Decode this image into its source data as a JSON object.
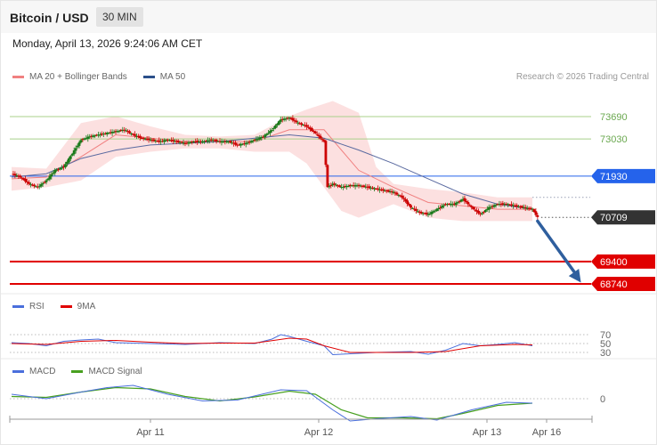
{
  "header": {
    "title": "Bitcoin / USD",
    "timeframe": "30 MIN"
  },
  "timestamp": "Monday, April 13, 2026 9:24:06 AM CET",
  "legend_main": [
    {
      "label": "MA 20 + Bollinger Bands",
      "color": "#f08080"
    },
    {
      "label": "MA 50",
      "color": "#2b4f8a"
    }
  ],
  "copyright": "Research © 2026 Trading Central",
  "colors": {
    "resistance": "#a8d08a",
    "pivot": "#2563eb",
    "support": "#e00000",
    "current": "#333333",
    "arrow": "#2f5f9e",
    "up": "#1a7a1a",
    "down": "#cc0000"
  },
  "chart_data": [
    {
      "type": "line",
      "name": "price",
      "ylim": [
        68300,
        74300
      ],
      "levels": [
        {
          "value": 73690,
          "label": "73690",
          "kind": "resistance"
        },
        {
          "value": 73030,
          "label": "73030",
          "kind": "resistance"
        },
        {
          "value": 71930,
          "label": "71930",
          "kind": "pivot"
        },
        {
          "value": 70709,
          "label": "70709",
          "kind": "current"
        },
        {
          "value": 69400,
          "label": "69400",
          "kind": "support"
        },
        {
          "value": 68740,
          "label": "68740",
          "kind": "support"
        }
      ],
      "x_ticks": [
        "Apr 11",
        "Apr 12",
        "Apr 13",
        "Apr 16"
      ],
      "close_path": [
        [
          0,
          72000
        ],
        [
          5,
          71900
        ],
        [
          10,
          71700
        ],
        [
          15,
          71600
        ],
        [
          20,
          71800
        ],
        [
          25,
          72100
        ],
        [
          30,
          72200
        ],
        [
          35,
          72600
        ],
        [
          40,
          73000
        ],
        [
          45,
          73100
        ],
        [
          50,
          73150
        ],
        [
          55,
          73200
        ],
        [
          60,
          73250
        ],
        [
          65,
          73300
        ],
        [
          70,
          73150
        ],
        [
          75,
          73050
        ],
        [
          80,
          73000
        ],
        [
          85,
          72950
        ],
        [
          90,
          73000
        ],
        [
          95,
          72950
        ],
        [
          100,
          72900
        ],
        [
          105,
          72950
        ],
        [
          110,
          72950
        ],
        [
          115,
          73000
        ],
        [
          120,
          72950
        ],
        [
          125,
          72950
        ],
        [
          130,
          72850
        ],
        [
          135,
          72900
        ],
        [
          140,
          73000
        ],
        [
          145,
          73100
        ],
        [
          150,
          73300
        ],
        [
          155,
          73600
        ],
        [
          160,
          73650
        ],
        [
          165,
          73500
        ],
        [
          170,
          73400
        ],
        [
          175,
          73200
        ],
        [
          180,
          72950
        ],
        [
          182,
          71600
        ],
        [
          185,
          71700
        ],
        [
          190,
          71600
        ],
        [
          195,
          71650
        ],
        [
          200,
          71650
        ],
        [
          205,
          71600
        ],
        [
          210,
          71550
        ],
        [
          215,
          71500
        ],
        [
          220,
          71450
        ],
        [
          225,
          71300
        ],
        [
          230,
          71000
        ],
        [
          235,
          70850
        ],
        [
          240,
          70800
        ],
        [
          245,
          70950
        ],
        [
          250,
          71100
        ],
        [
          255,
          71100
        ],
        [
          260,
          71250
        ],
        [
          265,
          71000
        ],
        [
          270,
          70800
        ],
        [
          275,
          71000
        ],
        [
          280,
          71100
        ],
        [
          285,
          71100
        ],
        [
          290,
          71050
        ],
        [
          295,
          71000
        ],
        [
          300,
          70950
        ],
        [
          303,
          70709
        ]
      ],
      "ma20": [
        [
          0,
          71850
        ],
        [
          20,
          71900
        ],
        [
          40,
          72500
        ],
        [
          60,
          73150
        ],
        [
          80,
          73050
        ],
        [
          100,
          72950
        ],
        [
          120,
          72950
        ],
        [
          140,
          72950
        ],
        [
          160,
          73300
        ],
        [
          180,
          73300
        ],
        [
          200,
          72100
        ],
        [
          220,
          71600
        ],
        [
          240,
          71150
        ],
        [
          260,
          71050
        ],
        [
          280,
          70950
        ],
        [
          300,
          70950
        ]
      ],
      "ma50": [
        [
          0,
          71900
        ],
        [
          20,
          72000
        ],
        [
          40,
          72450
        ],
        [
          60,
          72700
        ],
        [
          80,
          72850
        ],
        [
          100,
          72900
        ],
        [
          120,
          72950
        ],
        [
          140,
          73050
        ],
        [
          160,
          73150
        ],
        [
          180,
          73050
        ],
        [
          200,
          72700
        ],
        [
          220,
          72300
        ],
        [
          240,
          71850
        ],
        [
          260,
          71400
        ],
        [
          280,
          71100
        ],
        [
          300,
          70950
        ]
      ],
      "bb_upper": [
        [
          0,
          72200
        ],
        [
          20,
          72150
        ],
        [
          40,
          73500
        ],
        [
          60,
          73700
        ],
        [
          80,
          73400
        ],
        [
          100,
          73150
        ],
        [
          120,
          73100
        ],
        [
          140,
          73150
        ],
        [
          160,
          73700
        ],
        [
          170,
          73900
        ],
        [
          185,
          74150
        ],
        [
          200,
          73800
        ],
        [
          210,
          72200
        ],
        [
          220,
          71700
        ],
        [
          240,
          71550
        ],
        [
          260,
          71450
        ],
        [
          280,
          71300
        ],
        [
          300,
          71300
        ]
      ],
      "bb_lower": [
        [
          0,
          71500
        ],
        [
          20,
          71600
        ],
        [
          40,
          71800
        ],
        [
          60,
          72500
        ],
        [
          80,
          72650
        ],
        [
          100,
          72750
        ],
        [
          120,
          72750
        ],
        [
          140,
          72650
        ],
        [
          160,
          72650
        ],
        [
          170,
          72300
        ],
        [
          190,
          70900
        ],
        [
          200,
          70700
        ],
        [
          210,
          70900
        ],
        [
          220,
          71100
        ],
        [
          240,
          70700
        ],
        [
          260,
          70600
        ],
        [
          280,
          70600
        ],
        [
          300,
          70600
        ]
      ],
      "trend_arrow": {
        "from": [
          303,
          70600
        ],
        "to": [
          328,
          68780
        ]
      }
    },
    {
      "type": "line",
      "title": "RSI",
      "legend": [
        {
          "label": "RSI",
          "color": "#4a6fdc"
        },
        {
          "label": "9MA",
          "color": "#e00000"
        }
      ],
      "ylim": [
        15,
        85
      ],
      "y_ticks": [
        "70",
        "50",
        "30"
      ],
      "rsi": [
        [
          0,
          52
        ],
        [
          10,
          50
        ],
        [
          20,
          45
        ],
        [
          30,
          55
        ],
        [
          40,
          58
        ],
        [
          50,
          60
        ],
        [
          60,
          52
        ],
        [
          80,
          50
        ],
        [
          100,
          48
        ],
        [
          120,
          52
        ],
        [
          140,
          50
        ],
        [
          150,
          60
        ],
        [
          155,
          70
        ],
        [
          160,
          66
        ],
        [
          170,
          55
        ],
        [
          180,
          45
        ],
        [
          185,
          25
        ],
        [
          195,
          27
        ],
        [
          210,
          30
        ],
        [
          230,
          32
        ],
        [
          240,
          26
        ],
        [
          250,
          35
        ],
        [
          260,
          50
        ],
        [
          270,
          45
        ],
        [
          280,
          48
        ],
        [
          290,
          52
        ],
        [
          300,
          45
        ]
      ],
      "ma9": [
        [
          0,
          50
        ],
        [
          20,
          48
        ],
        [
          40,
          55
        ],
        [
          60,
          57
        ],
        [
          80,
          53
        ],
        [
          100,
          50
        ],
        [
          120,
          51
        ],
        [
          140,
          51
        ],
        [
          160,
          62
        ],
        [
          170,
          60
        ],
        [
          180,
          45
        ],
        [
          195,
          30
        ],
        [
          210,
          30
        ],
        [
          230,
          30
        ],
        [
          250,
          32
        ],
        [
          270,
          45
        ],
        [
          290,
          48
        ],
        [
          300,
          47
        ]
      ]
    },
    {
      "type": "line",
      "title": "MACD",
      "legend": [
        {
          "label": "MACD",
          "color": "#4a6fdc"
        },
        {
          "label": "MACD Signal",
          "color": "#48a020"
        }
      ],
      "ylim": [
        -650,
        550
      ],
      "y_ticks": [
        "0"
      ],
      "macd": [
        [
          0,
          100
        ],
        [
          20,
          0
        ],
        [
          40,
          150
        ],
        [
          55,
          250
        ],
        [
          70,
          300
        ],
        [
          90,
          100
        ],
        [
          110,
          -50
        ],
        [
          130,
          -30
        ],
        [
          155,
          200
        ],
        [
          170,
          180
        ],
        [
          185,
          -250
        ],
        [
          195,
          -500
        ],
        [
          210,
          -450
        ],
        [
          230,
          -400
        ],
        [
          245,
          -480
        ],
        [
          265,
          -250
        ],
        [
          285,
          -80
        ],
        [
          300,
          -100
        ]
      ],
      "signal": [
        [
          0,
          50
        ],
        [
          20,
          30
        ],
        [
          40,
          150
        ],
        [
          60,
          250
        ],
        [
          80,
          220
        ],
        [
          100,
          50
        ],
        [
          120,
          -50
        ],
        [
          140,
          40
        ],
        [
          160,
          170
        ],
        [
          175,
          100
        ],
        [
          190,
          -250
        ],
        [
          205,
          -430
        ],
        [
          225,
          -430
        ],
        [
          245,
          -450
        ],
        [
          260,
          -330
        ],
        [
          280,
          -150
        ],
        [
          300,
          -100
        ]
      ]
    }
  ]
}
